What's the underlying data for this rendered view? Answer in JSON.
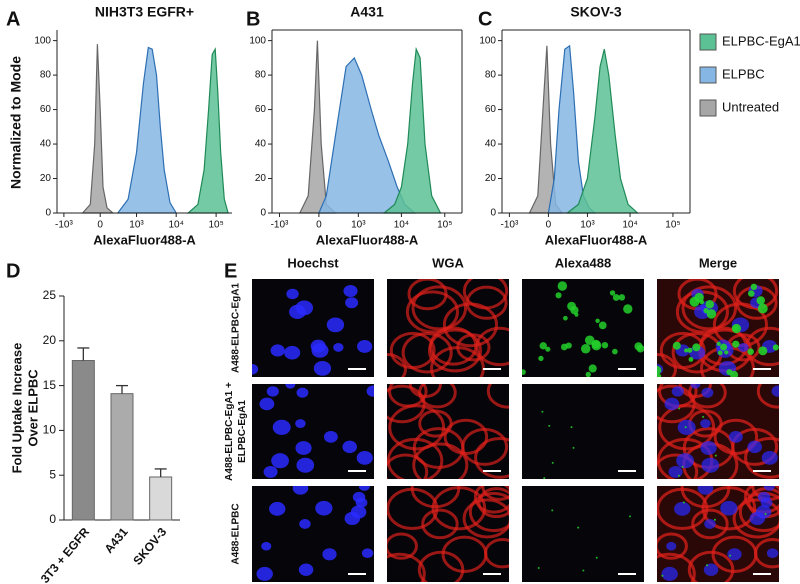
{
  "panel_labels": [
    "A",
    "B",
    "C",
    "D",
    "E"
  ],
  "chart_data": [
    {
      "type": "area",
      "title": "NIH3T3 EGFR+",
      "xlabel": "AlexaFluor488-A",
      "ylabel": "Normalized to Mode",
      "scale": "biexponential",
      "xlim": [
        -1500,
        250000
      ],
      "ylim": [
        0,
        105
      ],
      "xticks": [
        {
          "value": -1000,
          "label": "-10³"
        },
        0,
        {
          "value": 1000,
          "label": "10³"
        },
        {
          "value": 10000,
          "label": "10⁴"
        },
        {
          "value": 100000,
          "label": "10⁵"
        }
      ],
      "yticks": [
        0,
        20,
        40,
        60,
        80,
        100
      ],
      "series": [
        {
          "name": "Untreated",
          "color": "#a6a6a6",
          "x": [
            -300,
            -150,
            -80,
            -40,
            0,
            40,
            100,
            200
          ],
          "values": [
            0,
            5,
            40,
            98,
            60,
            15,
            3,
            0
          ]
        },
        {
          "name": "ELPBC",
          "color": "#86b6e3",
          "x": [
            300,
            600,
            1000,
            1500,
            2000,
            2500,
            3200,
            4000,
            5000,
            7000,
            10000
          ],
          "values": [
            0,
            8,
            35,
            75,
            96,
            95,
            80,
            50,
            25,
            6,
            0
          ]
        },
        {
          "name": "ELPBC-EgA1",
          "color": "#5cc194",
          "x": [
            20000,
            35000,
            50000,
            65000,
            80000,
            95000,
            110000,
            130000,
            160000,
            200000
          ],
          "values": [
            0,
            5,
            25,
            60,
            92,
            95,
            70,
            35,
            8,
            0
          ]
        }
      ]
    },
    {
      "type": "area",
      "title": "A431",
      "xlabel": "AlexaFluor488-A",
      "scale": "biexponential",
      "xlim": [
        -1500,
        250000
      ],
      "ylim": [
        0,
        105
      ],
      "xticks": [
        {
          "value": -1000,
          "label": "-10³"
        },
        0,
        {
          "value": 1000,
          "label": "10³"
        },
        {
          "value": 10000,
          "label": "10⁴"
        },
        {
          "value": 100000,
          "label": "10⁵"
        }
      ],
      "yticks": [
        0,
        20,
        40,
        60,
        80,
        100
      ],
      "series": [
        {
          "name": "Untreated",
          "color": "#a6a6a6",
          "x": [
            -300,
            -150,
            -60,
            -20,
            30,
            100,
            250
          ],
          "values": [
            0,
            10,
            60,
            100,
            40,
            5,
            0
          ]
        },
        {
          "name": "ELPBC",
          "color": "#86b6e3",
          "x": [
            0,
            100,
            250,
            500,
            800,
            1200,
            2000,
            3000,
            5000,
            8000,
            12000,
            20000
          ],
          "values": [
            0,
            10,
            45,
            85,
            90,
            80,
            60,
            45,
            30,
            15,
            5,
            0
          ]
        },
        {
          "name": "ELPBC-EgA1",
          "color": "#5cc194",
          "x": [
            4000,
            7000,
            10000,
            14000,
            18000,
            22000,
            27000,
            35000,
            50000,
            80000
          ],
          "values": [
            0,
            5,
            15,
            40,
            75,
            95,
            90,
            40,
            10,
            0
          ]
        }
      ]
    },
    {
      "type": "area",
      "title": "SKOV-3",
      "xlabel": "AlexaFluor488-A",
      "legend": "right",
      "scale": "biexponential",
      "xlim": [
        -1500,
        250000
      ],
      "ylim": [
        0,
        105
      ],
      "xticks": [
        {
          "value": -1000,
          "label": "-10³"
        },
        0,
        {
          "value": 1000,
          "label": "10³"
        },
        {
          "value": 10000,
          "label": "10⁴"
        },
        {
          "value": 100000,
          "label": "10⁵"
        }
      ],
      "yticks": [
        0,
        20,
        40,
        60,
        80,
        100
      ],
      "series": [
        {
          "name": "Untreated",
          "color": "#a6a6a6",
          "x": [
            -300,
            -150,
            -60,
            -20,
            30,
            100,
            200
          ],
          "values": [
            0,
            10,
            70,
            97,
            40,
            5,
            0
          ]
        },
        {
          "name": "ELPBC",
          "color": "#86b6e3",
          "x": [
            0,
            80,
            150,
            250,
            350,
            450,
            600,
            800,
            1100,
            1500
          ],
          "values": [
            0,
            20,
            60,
            95,
            97,
            70,
            30,
            10,
            3,
            0
          ]
        },
        {
          "name": "ELPBC-EgA1",
          "color": "#5cc194",
          "x": [
            300,
            600,
            1000,
            1500,
            2000,
            2500,
            3200,
            4500,
            6000,
            9000,
            15000
          ],
          "values": [
            0,
            5,
            20,
            55,
            85,
            95,
            80,
            45,
            20,
            5,
            0
          ]
        }
      ]
    },
    {
      "type": "bar",
      "ylabel": [
        "Fold Uptake Increase",
        "Over ELPBC"
      ],
      "categories": [
        "3T3 + EGFR",
        "A431",
        "SKOV-3"
      ],
      "values": [
        17.8,
        14.1,
        4.8
      ],
      "errors": [
        1.4,
        0.9,
        0.9
      ],
      "colors": [
        "#8a8a8a",
        "#ababab",
        "#d9d9d9"
      ],
      "ylim": [
        0,
        25
      ],
      "yticks": [
        0,
        5,
        10,
        15,
        20,
        25
      ]
    }
  ],
  "microscopy": {
    "columns": [
      {
        "label": "Hoechst",
        "color": "#3b3bff"
      },
      {
        "label": "WGA",
        "color": "#e8231e"
      },
      {
        "label": "Alexa488",
        "color": "#22b02a"
      },
      {
        "label": "Merge",
        "color": "#111111"
      }
    ],
    "rows": [
      [
        "A488-ELPBC-EgA1"
      ],
      [
        "A488-ELPBC-EgA1 +",
        "ELPBC-EgA1"
      ],
      [
        "A488-ELPBC"
      ]
    ]
  }
}
